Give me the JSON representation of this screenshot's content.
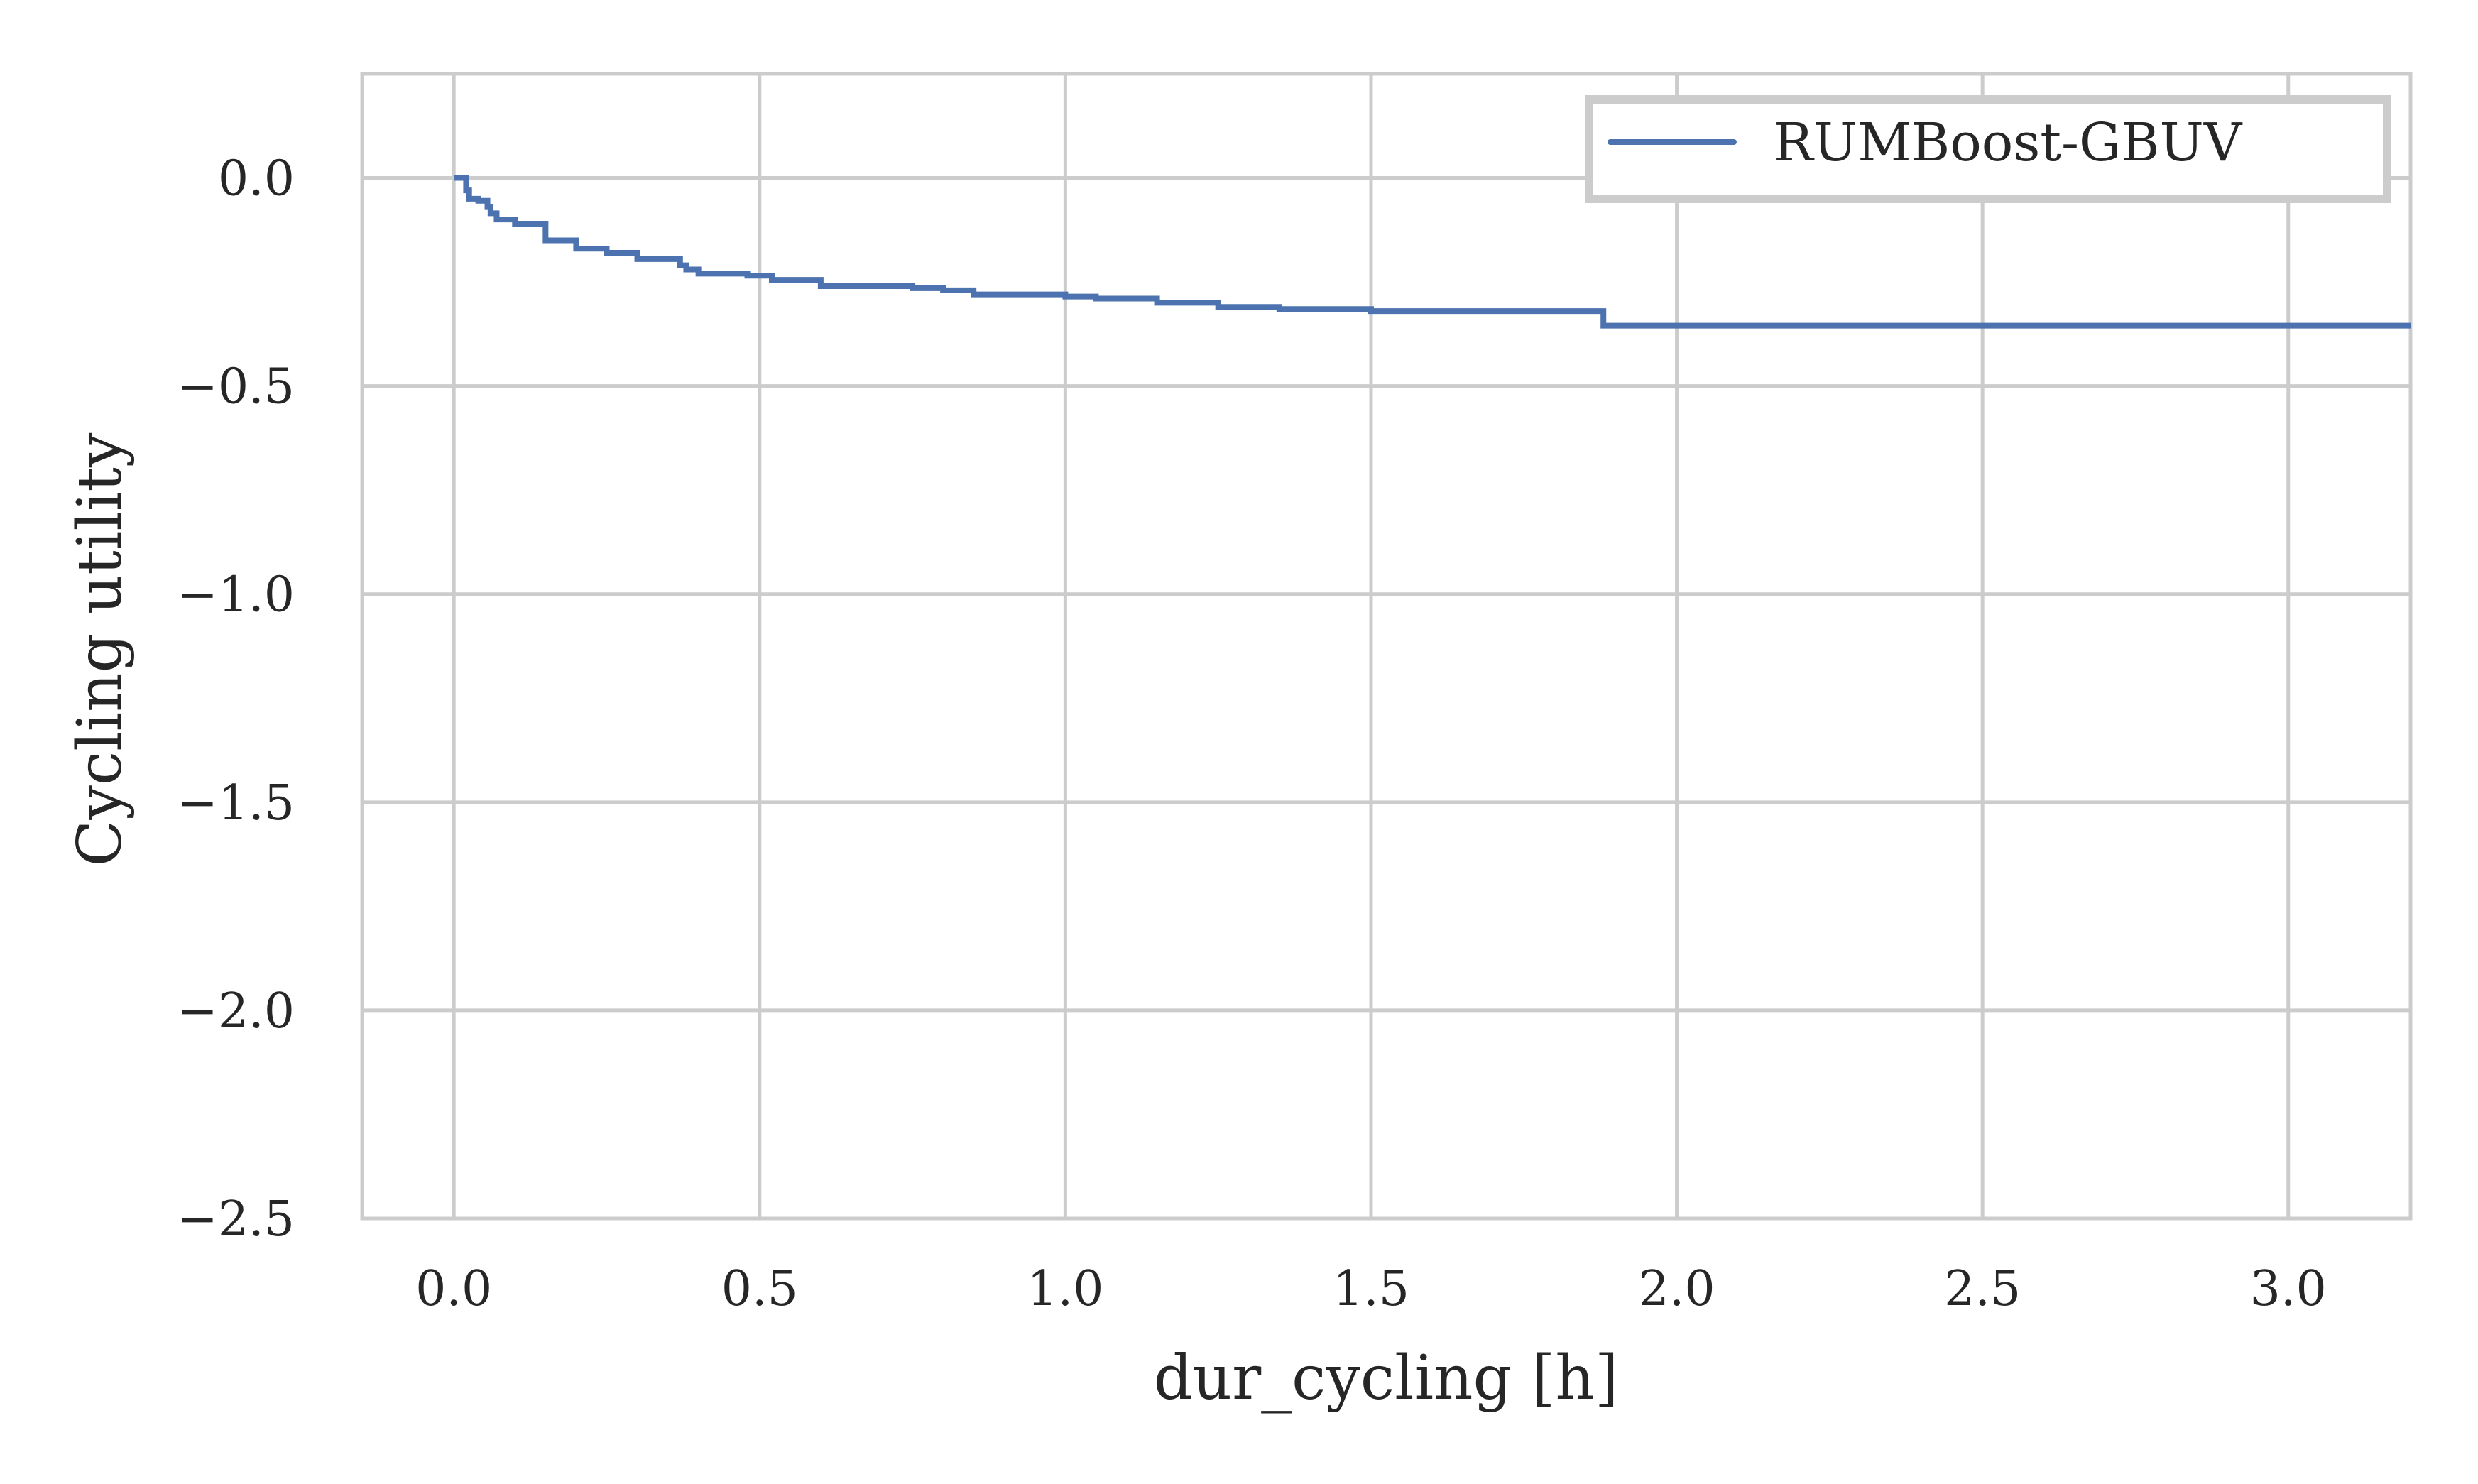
{
  "chart_data": {
    "type": "line",
    "title": "",
    "xlabel": "dur_cycling [h]",
    "ylabel": "Cycling utility",
    "xlim": [
      -0.15,
      3.2
    ],
    "ylim": [
      -2.5,
      0.25
    ],
    "x_ticks": [
      0.0,
      0.5,
      1.0,
      1.5,
      2.0,
      2.5,
      3.0
    ],
    "x_tick_labels": [
      "0.0",
      "0.5",
      "1.0",
      "1.5",
      "2.0",
      "2.5",
      "3.0"
    ],
    "y_ticks": [
      0.0,
      -0.5,
      -1.0,
      -1.5,
      -2.0,
      -2.5
    ],
    "y_tick_labels": [
      "0.0",
      "−0.5",
      "−1.0",
      "−1.5",
      "−2.0",
      "−2.5"
    ],
    "grid": true,
    "legend": {
      "position": "top-right",
      "entries": [
        "RUMBoost-GBUV"
      ]
    },
    "series": [
      {
        "name": "RUMBoost-GBUV",
        "color": "#4c72b0",
        "step": "post",
        "x": [
          0.0,
          0.02,
          0.025,
          0.04,
          0.055,
          0.06,
          0.07,
          0.1,
          0.15,
          0.2,
          0.25,
          0.3,
          0.37,
          0.38,
          0.4,
          0.48,
          0.52,
          0.6,
          0.75,
          0.8,
          0.85,
          0.95,
          1.0,
          1.05,
          1.1,
          1.15,
          1.25,
          1.35,
          1.5,
          1.6,
          1.85,
          1.88,
          2.5,
          3.2
        ],
        "y": [
          0.0,
          -0.03,
          -0.05,
          -0.055,
          -0.07,
          -0.085,
          -0.1,
          -0.11,
          -0.15,
          -0.17,
          -0.18,
          -0.195,
          -0.21,
          -0.22,
          -0.23,
          -0.235,
          -0.245,
          -0.26,
          -0.265,
          -0.27,
          -0.28,
          -0.28,
          -0.285,
          -0.29,
          -0.29,
          -0.3,
          -0.31,
          -0.315,
          -0.32,
          -0.32,
          -0.32,
          -0.355,
          -0.355,
          -0.355
        ]
      }
    ]
  }
}
